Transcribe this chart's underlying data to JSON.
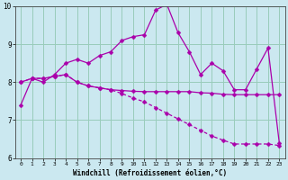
{
  "title": "",
  "xlabel": "Windchill (Refroidissement éolien,°C)",
  "ylabel": "",
  "bg_color": "#cbe8f0",
  "line_color": "#aa00aa",
  "grid_color": "#99ccbb",
  "xlim": [
    -0.5,
    23.5
  ],
  "ylim": [
    6,
    10
  ],
  "yticks": [
    6,
    7,
    8,
    9,
    10
  ],
  "xticks": [
    0,
    1,
    2,
    3,
    4,
    5,
    6,
    7,
    8,
    9,
    10,
    11,
    12,
    13,
    14,
    15,
    16,
    17,
    18,
    19,
    20,
    21,
    22,
    23
  ],
  "x": [
    0,
    1,
    2,
    3,
    4,
    5,
    6,
    7,
    8,
    9,
    10,
    11,
    12,
    13,
    14,
    15,
    16,
    17,
    18,
    19,
    20,
    21,
    22,
    23
  ],
  "line1": [
    7.4,
    8.1,
    8.0,
    8.2,
    8.5,
    8.6,
    8.5,
    8.7,
    8.8,
    9.1,
    9.2,
    9.25,
    9.9,
    10.05,
    9.3,
    8.8,
    8.2,
    8.5,
    8.3,
    7.8,
    7.8,
    8.35,
    8.9,
    6.4
  ],
  "line2": [
    8.0,
    8.1,
    8.1,
    8.15,
    8.2,
    8.0,
    7.9,
    7.85,
    7.8,
    7.78,
    7.76,
    7.75,
    7.75,
    7.75,
    7.75,
    7.75,
    7.72,
    7.71,
    7.68,
    7.67,
    7.67,
    7.67,
    7.67,
    7.67
  ],
  "line3": [
    8.0,
    8.1,
    8.1,
    8.15,
    8.2,
    8.0,
    7.9,
    7.85,
    7.8,
    7.7,
    7.58,
    7.48,
    7.33,
    7.18,
    7.03,
    6.88,
    6.73,
    6.58,
    6.47,
    6.37,
    6.37,
    6.37,
    6.37,
    6.33
  ]
}
